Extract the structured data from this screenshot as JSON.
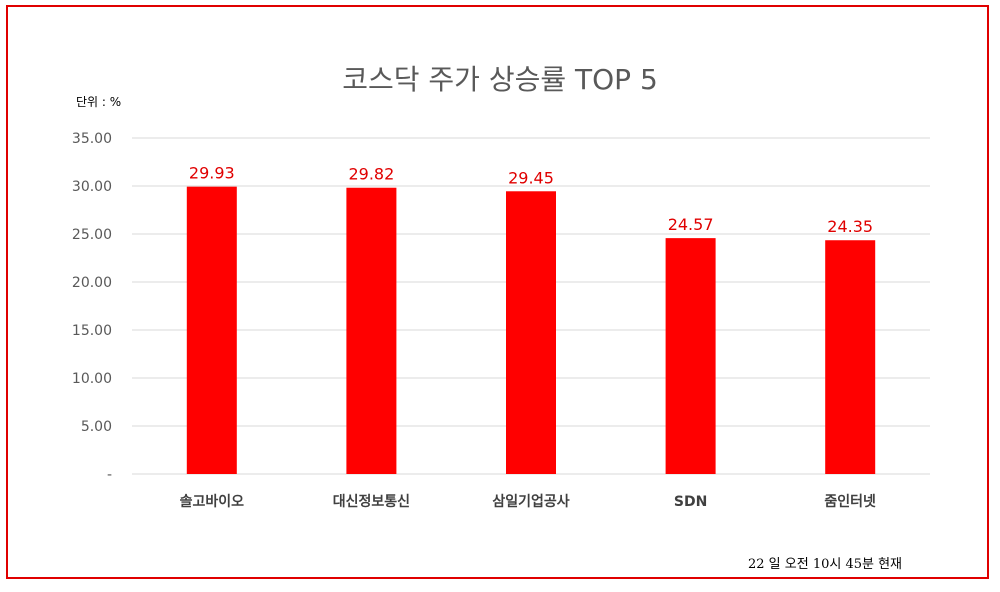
{
  "chart_data": {
    "type": "bar",
    "title": "코스닥 주가 상승률 TOP 5",
    "unit_label": "단위 : %",
    "categories": [
      "솔고바이오",
      "대신정보통신",
      "삼일기업공사",
      "SDN",
      "줌인터넷"
    ],
    "values": [
      29.93,
      29.82,
      29.45,
      24.57,
      24.35
    ],
    "data_labels": [
      "29.93",
      "29.82",
      "29.45",
      "24.57",
      "24.35"
    ],
    "yticks": [
      0,
      5,
      10,
      15,
      20,
      25,
      30,
      35
    ],
    "ytick_labels": [
      "-",
      "5.00",
      "10.00",
      "15.00",
      "20.00",
      "25.00",
      "30.00",
      "35.00"
    ],
    "ylim": [
      0,
      35
    ],
    "grid": true,
    "bar_color": "#ff0000",
    "label_color": "#e00000"
  },
  "footnote": "22 일  오전 10시 45분 현재",
  "colors": {
    "frame": "#e00000",
    "gridline": "#d9d9d9"
  }
}
